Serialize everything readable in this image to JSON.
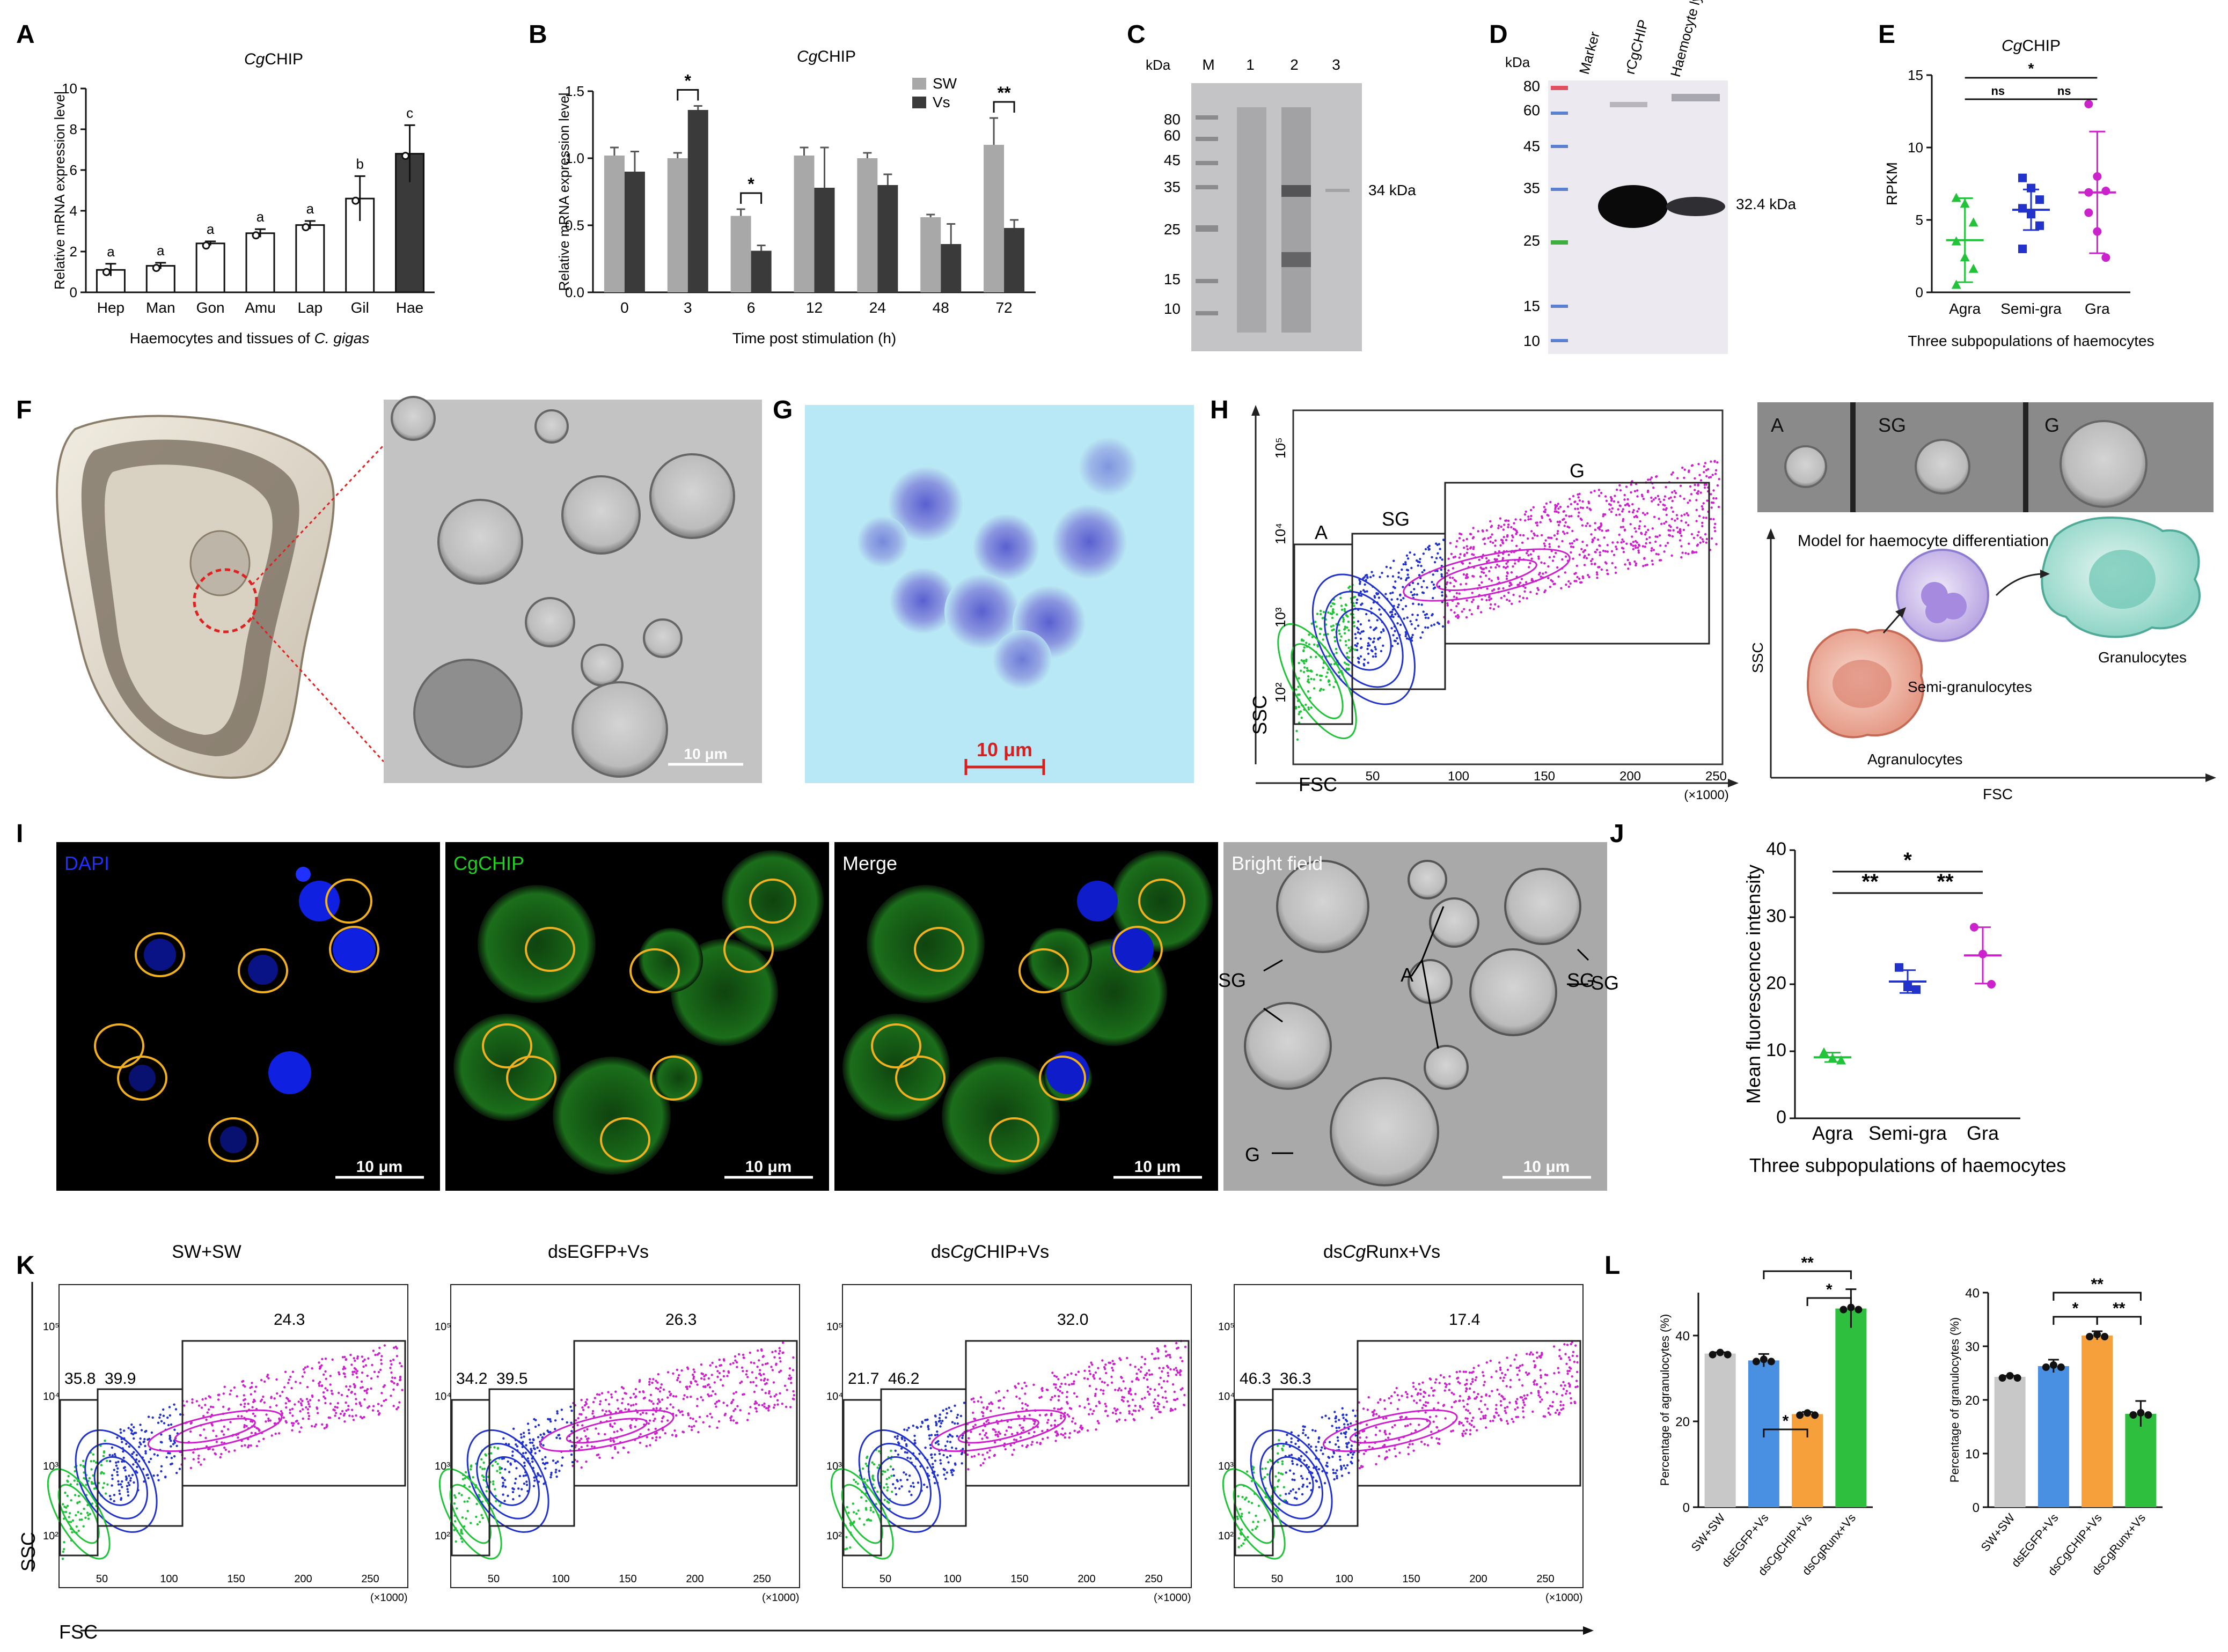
{
  "labels": [
    "A",
    "B",
    "C",
    "D",
    "E",
    "F",
    "G",
    "H",
    "I",
    "J",
    "K",
    "L"
  ],
  "colors": {
    "agra": "#22c33a",
    "semi": "#2233cc",
    "gra": "#cc22cc",
    "gray": "#c8c8c8",
    "blue": "#4a90e2",
    "orange": "#f5a03a",
    "green": "#2fbf3f",
    "dark": "#3a3a3a",
    "light": "#a8a8a8",
    "scale_red": "#d62020"
  },
  "chart_data": [
    {
      "panel": "A",
      "type": "bar",
      "title": "CgCHIP",
      "ylabel": "Relative mRNA expression level",
      "xlabel": "Haemocytes and tissues of C. gigas",
      "ylim": [
        0,
        10
      ],
      "yticks": [
        "0",
        "2",
        "4",
        "6",
        "8",
        "10"
      ],
      "categories": [
        "Hep",
        "Man",
        "Gon",
        "Amu",
        "Lap",
        "Gil",
        "Hae"
      ],
      "values": [
        1.1,
        1.3,
        2.4,
        2.9,
        3.3,
        4.6,
        6.8
      ],
      "errors": [
        0.3,
        0.15,
        0.1,
        0.2,
        0.2,
        1.1,
        1.4
      ],
      "letters": [
        "a",
        "a",
        "a",
        "a",
        "a",
        "b",
        "c"
      ]
    },
    {
      "panel": "B",
      "type": "bar",
      "title": "CgCHIP",
      "ylabel": "Relative mRNA expression level",
      "xlabel": "Time post stimulation (h)",
      "ylim": [
        0,
        1.5
      ],
      "yticks": [
        "0.0",
        "0.5",
        "1.0",
        "1.5"
      ],
      "categories": [
        "0",
        "3",
        "6",
        "12",
        "24",
        "48",
        "72"
      ],
      "series": [
        {
          "name": "SW",
          "values": [
            1.02,
            1.0,
            0.57,
            1.02,
            1.0,
            0.56,
            1.1
          ],
          "errors": [
            0.06,
            0.04,
            0.05,
            0.06,
            0.04,
            0.02,
            0.2
          ]
        },
        {
          "name": "Vs",
          "values": [
            0.9,
            1.36,
            0.31,
            0.78,
            0.8,
            0.36,
            0.48
          ],
          "errors": [
            0.15,
            0.03,
            0.04,
            0.3,
            0.08,
            0.15,
            0.06
          ]
        }
      ],
      "sig": [
        {
          "cat": "3",
          "mark": "*"
        },
        {
          "cat": "6",
          "mark": "*"
        },
        {
          "cat": "72",
          "mark": "**"
        }
      ]
    },
    {
      "panel": "E",
      "type": "scatter",
      "title": "CgCHIP",
      "ylabel": "RPKM",
      "xlabel": "Three subpopulations of haemocytes",
      "ylim": [
        0,
        15
      ],
      "yticks": [
        "0",
        "5",
        "10",
        "15"
      ],
      "categories": [
        "Agra",
        "Semi-gra",
        "Gra"
      ],
      "points": [
        [
          6.5,
          6.1,
          4.8,
          3.5,
          2.4,
          1.6,
          0.5
        ],
        [
          7.9,
          7.2,
          6.4,
          5.8,
          5.4,
          4.6,
          3.0
        ],
        [
          13.0,
          8.0,
          7.0,
          6.9,
          4.2,
          2.4,
          5.5
        ]
      ],
      "means": [
        3.6,
        5.7,
        6.9
      ],
      "sd": [
        2.9,
        1.4,
        4.2
      ],
      "sig": [
        "ns",
        "ns",
        "*"
      ]
    },
    {
      "panel": "J",
      "type": "scatter",
      "ylabel": "Mean fluorescence intensity",
      "xlabel": "Three subpopulations of haemocytes",
      "ylim": [
        0,
        40
      ],
      "yticks": [
        "0",
        "10",
        "20",
        "30",
        "40"
      ],
      "categories": [
        "Agra",
        "Semi-gra",
        "Gra"
      ],
      "points": [
        [
          9.8,
          8.9,
          8.6
        ],
        [
          22.5,
          19.6,
          19.2
        ],
        [
          28.5,
          24.5,
          20.0
        ]
      ],
      "means": [
        9.1,
        20.4,
        24.3
      ],
      "sd": [
        0.7,
        1.7,
        4.2
      ],
      "sig": [
        "**",
        "**",
        "*"
      ]
    },
    {
      "panel": "L1",
      "type": "bar",
      "ylabel": "Percentage of agranulocytes (%)",
      "ylim": [
        0,
        50
      ],
      "yticks": [
        "0",
        "20",
        "40"
      ],
      "categories": [
        "SW+SW",
        "dsEGFP+Vs",
        "dsCgCHIP+Vs",
        "dsCgRunx+Vs"
      ],
      "values": [
        35.8,
        34.2,
        21.7,
        46.3
      ],
      "errors": [
        0.3,
        1.5,
        0.5,
        4.5
      ],
      "sig": [
        "*",
        "*",
        "**"
      ]
    },
    {
      "panel": "L2",
      "type": "bar",
      "ylabel": "Percentage of granulocytes (%)",
      "ylim": [
        0,
        40
      ],
      "yticks": [
        "0",
        "10",
        "20",
        "30",
        "40"
      ],
      "categories": [
        "SW+SW",
        "dsEGFP+Vs",
        "dsCgCHIP+Vs",
        "dsCgRunx+Vs"
      ],
      "values": [
        24.3,
        26.3,
        32.0,
        17.4
      ],
      "errors": [
        0.2,
        1.2,
        0.8,
        2.4
      ],
      "sig": [
        "*",
        "**",
        "**"
      ]
    }
  ],
  "panelA": {
    "title": "CgCHIP",
    "title_italic": "Cg",
    "title_rest": "CHIP",
    "xlabel_pre": "Haemocytes and tissues of ",
    "xlabel_it": "C. gigas"
  },
  "panelB": {
    "legend": [
      "SW",
      "Vs"
    ]
  },
  "panelC": {
    "kda": "kDa",
    "lanes": [
      "M",
      "1",
      "2",
      "3"
    ],
    "markers": [
      "80",
      "60",
      "45",
      "35",
      "25",
      "15",
      "10"
    ],
    "band": "34 kDa"
  },
  "panelD": {
    "kda": "kDa",
    "lanes": [
      "Marker",
      "rCgCHIP",
      "Haemocyte lysate"
    ],
    "markers": [
      "80",
      "60",
      "45",
      "35",
      "25",
      "15",
      "10"
    ],
    "band": "32.4 kDa"
  },
  "panelF": {
    "scale": "10 μm"
  },
  "panelG": {
    "scale": "10 μm"
  },
  "panelH": {
    "gates": [
      "A",
      "SG",
      "G"
    ],
    "xlabel": "FSC",
    "ylabel": "SSC",
    "xticks": [
      "50",
      "100",
      "150",
      "200",
      "250"
    ],
    "xunit": "(×1000)",
    "yticks": [
      "10²",
      "10³",
      "10⁴",
      "10⁵"
    ],
    "cell_labels": [
      "A",
      "SG",
      "G"
    ],
    "model_title": "Model for haemocyte differentiation",
    "model_cells": [
      "Agranulocytes",
      "Semi-granulocytes",
      "Granulocytes"
    ],
    "model_x": "FSC",
    "model_y": "SSC"
  },
  "panelI": {
    "titles": [
      "DAPI",
      "CgCHIP",
      "Merge",
      "Bright field"
    ],
    "scale": "10 μm",
    "bf_labels": [
      "SG",
      "SG",
      "A",
      "SG",
      "G"
    ]
  },
  "panelK": {
    "samples": [
      {
        "title": "SW+SW",
        "a": "35.8",
        "sg": "39.9",
        "g": "24.3"
      },
      {
        "title": "dsEGFP+Vs",
        "a": "34.2",
        "sg": "39.5",
        "g": "26.3"
      },
      {
        "title": "dsCgCHIP+Vs",
        "a": "21.7",
        "sg": "46.2",
        "g": "32.0"
      },
      {
        "title": "dsCgRunx+Vs",
        "a": "46.3",
        "sg": "36.3",
        "g": "17.4"
      }
    ],
    "xlabel": "FSC",
    "ylabel": "SSC",
    "xunit": "(×1000)"
  }
}
